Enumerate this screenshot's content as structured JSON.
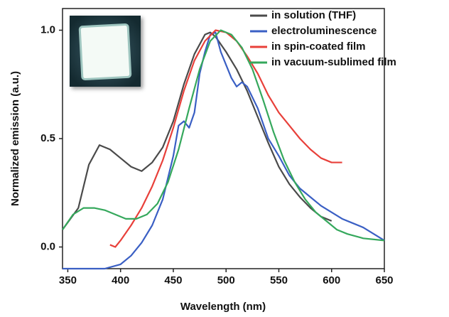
{
  "chart_data": {
    "type": "line",
    "x_label": "Wavelength (nm)",
    "y_label": "Normalized emission (a.u.)",
    "xlim": [
      345,
      650
    ],
    "ylim": [
      -0.1,
      1.1
    ],
    "xticks": [
      350,
      400,
      450,
      500,
      550,
      600,
      650
    ],
    "yticks": [
      {
        "value": 0,
        "label": "0.0"
      },
      0.5,
      {
        "value": 1,
        "label": "1.0"
      }
    ],
    "legend": "upper right",
    "series": [
      {
        "name": "in solution (THF)",
        "color": "#4a4a4a",
        "x": [
          345,
          360,
          370,
          380,
          390,
          400,
          410,
          420,
          430,
          440,
          450,
          460,
          470,
          480,
          485,
          490,
          500,
          510,
          520,
          530,
          540,
          550,
          560,
          570,
          580,
          590,
          600
        ],
        "values": [
          0.08,
          0.18,
          0.38,
          0.47,
          0.45,
          0.41,
          0.37,
          0.35,
          0.39,
          0.46,
          0.58,
          0.75,
          0.89,
          0.98,
          0.99,
          0.97,
          0.9,
          0.82,
          0.72,
          0.6,
          0.48,
          0.37,
          0.29,
          0.23,
          0.18,
          0.14,
          0.12
        ]
      },
      {
        "name": "electroluminescence",
        "color": "#3a5fc4",
        "x": [
          345,
          385,
          400,
          410,
          420,
          430,
          440,
          450,
          455,
          460,
          465,
          470,
          475,
          480,
          485,
          490,
          495,
          500,
          505,
          510,
          515,
          520,
          530,
          540,
          550,
          560,
          570,
          580,
          590,
          600,
          610,
          620,
          630,
          640,
          650
        ],
        "values": [
          -0.1,
          -0.1,
          -0.08,
          -0.04,
          0.02,
          0.1,
          0.22,
          0.42,
          0.56,
          0.58,
          0.55,
          0.62,
          0.8,
          0.9,
          0.98,
          0.99,
          0.9,
          0.84,
          0.78,
          0.74,
          0.76,
          0.74,
          0.64,
          0.5,
          0.42,
          0.33,
          0.27,
          0.23,
          0.19,
          0.16,
          0.13,
          0.11,
          0.09,
          0.06,
          0.03
        ]
      },
      {
        "name": "in spin-coated film",
        "color": "#e8403a",
        "x": [
          390,
          395,
          400,
          410,
          420,
          430,
          440,
          450,
          460,
          470,
          480,
          490,
          500,
          510,
          520,
          530,
          540,
          550,
          560,
          570,
          580,
          590,
          600,
          610
        ],
        "values": [
          0.01,
          0.0,
          0.03,
          0.1,
          0.18,
          0.28,
          0.4,
          0.55,
          0.72,
          0.86,
          0.95,
          1.0,
          0.99,
          0.95,
          0.88,
          0.8,
          0.7,
          0.62,
          0.56,
          0.5,
          0.45,
          0.41,
          0.39,
          0.39
        ]
      },
      {
        "name": "in vacuum-sublimed film",
        "color": "#35a85c",
        "x": [
          345,
          355,
          365,
          375,
          385,
          395,
          405,
          415,
          425,
          435,
          445,
          455,
          465,
          475,
          485,
          495,
          505,
          515,
          525,
          535,
          545,
          555,
          565,
          575,
          585,
          595,
          605,
          615,
          630,
          650
        ],
        "values": [
          0.08,
          0.15,
          0.18,
          0.18,
          0.17,
          0.15,
          0.13,
          0.13,
          0.15,
          0.2,
          0.3,
          0.45,
          0.64,
          0.82,
          0.95,
          1.0,
          0.98,
          0.92,
          0.82,
          0.68,
          0.53,
          0.4,
          0.3,
          0.22,
          0.16,
          0.12,
          0.08,
          0.06,
          0.04,
          0.03
        ]
      }
    ]
  }
}
